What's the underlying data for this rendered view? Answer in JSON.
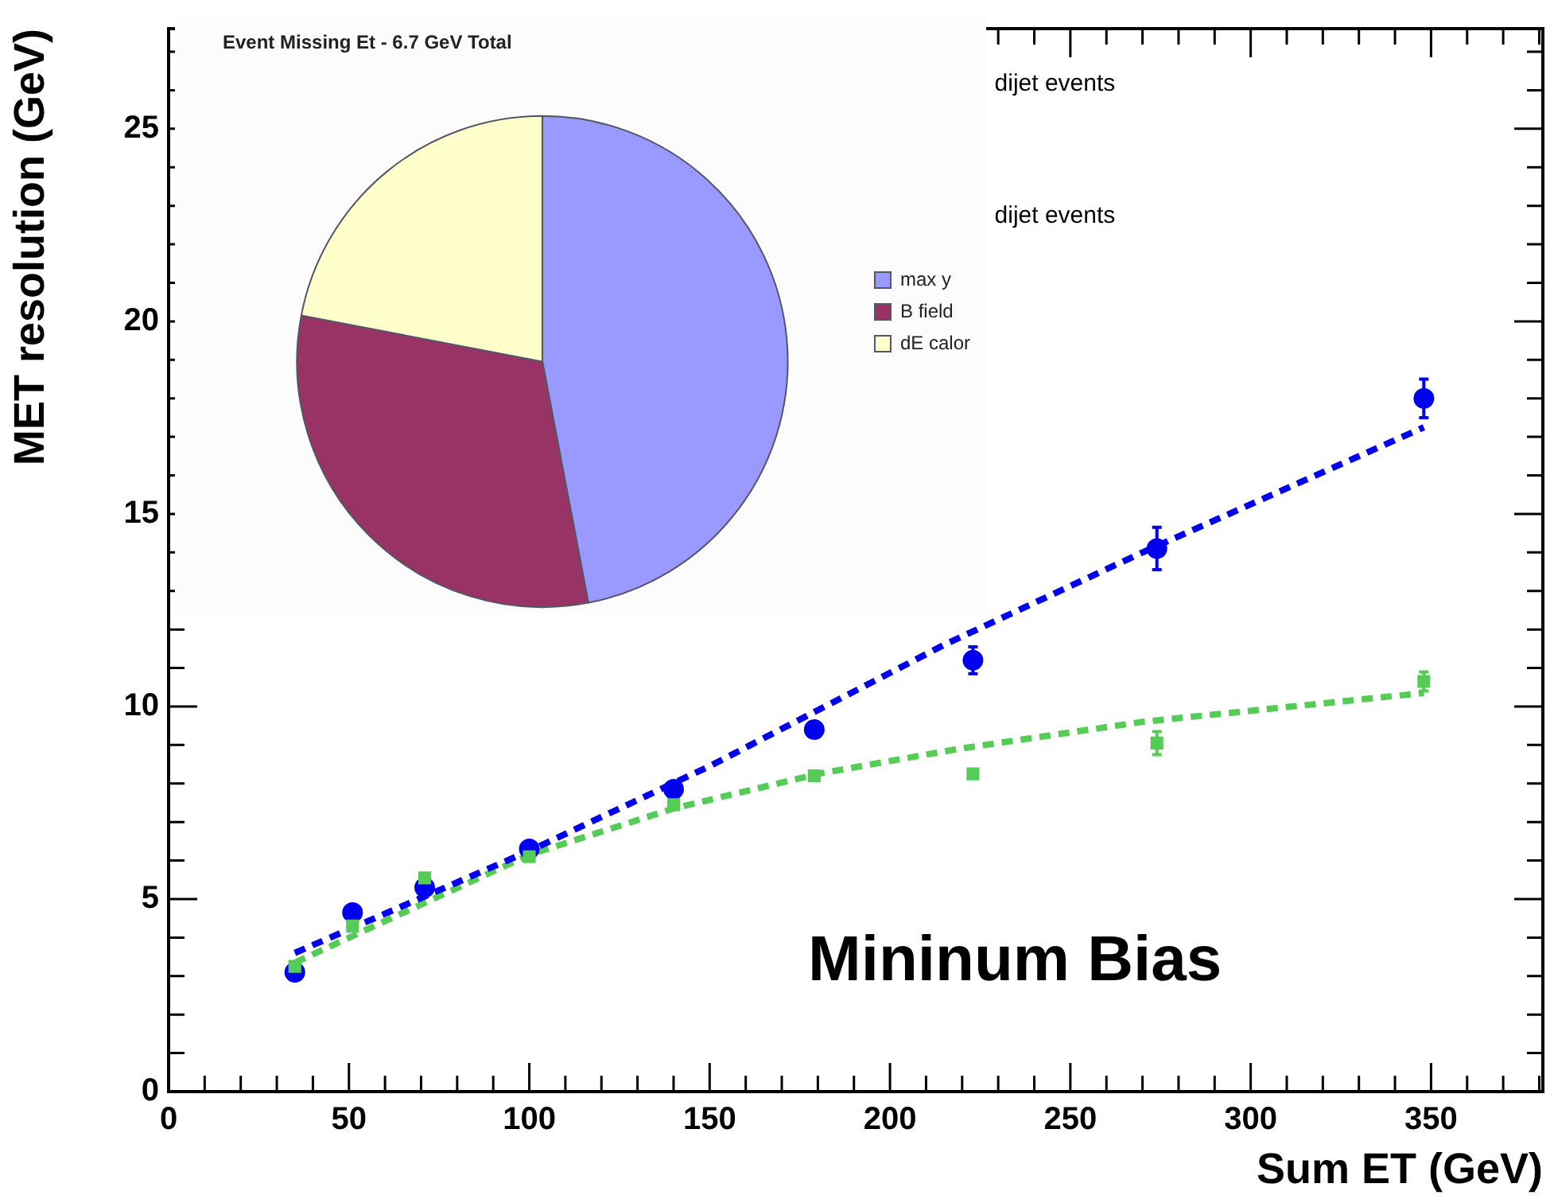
{
  "chart_data": [
    {
      "type": "scatter",
      "xlabel": "Sum ET (GeV)",
      "ylabel": "MET resolution (GeV)",
      "xlim": [
        0,
        381
      ],
      "ylim": [
        0,
        27.6
      ],
      "xticks": [
        0,
        50,
        100,
        150,
        200,
        250,
        300,
        350
      ],
      "yticks": [
        0,
        5,
        10,
        15,
        20,
        25
      ],
      "grid": false,
      "legend": false,
      "annotations": [
        "dijet events",
        "dijet events",
        "Mininum Bias"
      ],
      "series": [
        {
          "color": "#0000ee",
          "marker": "circle",
          "x": [
            35,
            51,
            71,
            100,
            140,
            179,
            223,
            274,
            348
          ],
          "values": [
            3.1,
            4.65,
            5.3,
            6.3,
            7.85,
            9.4,
            11.2,
            14.1,
            18.0
          ],
          "errors": [
            null,
            null,
            null,
            null,
            null,
            0.2,
            0.35,
            0.55,
            0.5
          ]
        },
        {
          "color": "#55cc55",
          "marker": "square",
          "x": [
            35,
            51,
            71,
            100,
            140,
            179,
            223,
            274,
            348
          ],
          "values": [
            3.25,
            4.3,
            5.55,
            6.1,
            7.45,
            8.2,
            8.25,
            9.05,
            10.65
          ],
          "errors": [
            null,
            null,
            null,
            null,
            null,
            null,
            null,
            0.3,
            0.25
          ]
        },
        {
          "type": "line",
          "color": "#0000ee",
          "line_style": "dashed",
          "x": [
            35,
            100,
            150,
            215,
            270,
            348
          ],
          "values": [
            3.6,
            6.25,
            8.45,
            11.6,
            14.0,
            17.25
          ]
        },
        {
          "type": "line",
          "color": "#55cc55",
          "line_style": "dashed",
          "x": [
            35,
            100,
            140,
            180,
            219,
            270,
            348
          ],
          "values": [
            3.35,
            6.15,
            7.35,
            8.25,
            8.9,
            9.6,
            10.35
          ]
        }
      ]
    },
    {
      "type": "pie",
      "title": "Event Missing Et - 6.7 GeV Total",
      "legend": "right",
      "categories": [
        "max y",
        "B field",
        "dE calor"
      ],
      "values": [
        47,
        31,
        22
      ],
      "colors": [
        "#9999ff",
        "#993366",
        "#ffffcc"
      ]
    }
  ]
}
